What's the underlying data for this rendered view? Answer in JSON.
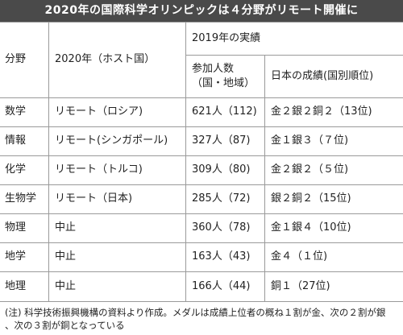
{
  "title": "2020年の国際科学オリンピックは４分野がリモート開催に",
  "headers": {
    "field": "分野",
    "host": "2020年（ホスト国）",
    "results_2019": "2019年の実績",
    "participants_line1": "参加人数",
    "participants_line2": "（国・地域）",
    "japan": "日本の成績(国別順位)"
  },
  "rows": [
    {
      "field": "数学",
      "host": "リモート（ロシア)",
      "participants": "621人（112)",
      "japan": "金２銀２銅２（13位)"
    },
    {
      "field": "情報",
      "host": "リモート(シンガポール)",
      "participants": "327人（87)",
      "japan": "金１銀３（７位)"
    },
    {
      "field": "化学",
      "host": "リモート（トルコ)",
      "participants": "309人（80)",
      "japan": "金２銀２（５位)"
    },
    {
      "field": "生物学",
      "host": "リモート（日本)",
      "participants": "285人（72)",
      "japan": "銀２銅２（15位)"
    },
    {
      "field": "物理",
      "host": "中止",
      "participants": "360人（78)",
      "japan": "金１銀４（10位)"
    },
    {
      "field": "地学",
      "host": "中止",
      "participants": "163人（43)",
      "japan": "金４（１位)"
    },
    {
      "field": "地理",
      "host": "中止",
      "participants": "166人（44)",
      "japan": "銅１（27位)"
    }
  ],
  "note_line1": "(注) 科学技術振興機構の資料より作成。メダルは成績上位者の概ね１割が金、次の２割が銀",
  "note_line2": "、次の３割が銅となっている"
}
